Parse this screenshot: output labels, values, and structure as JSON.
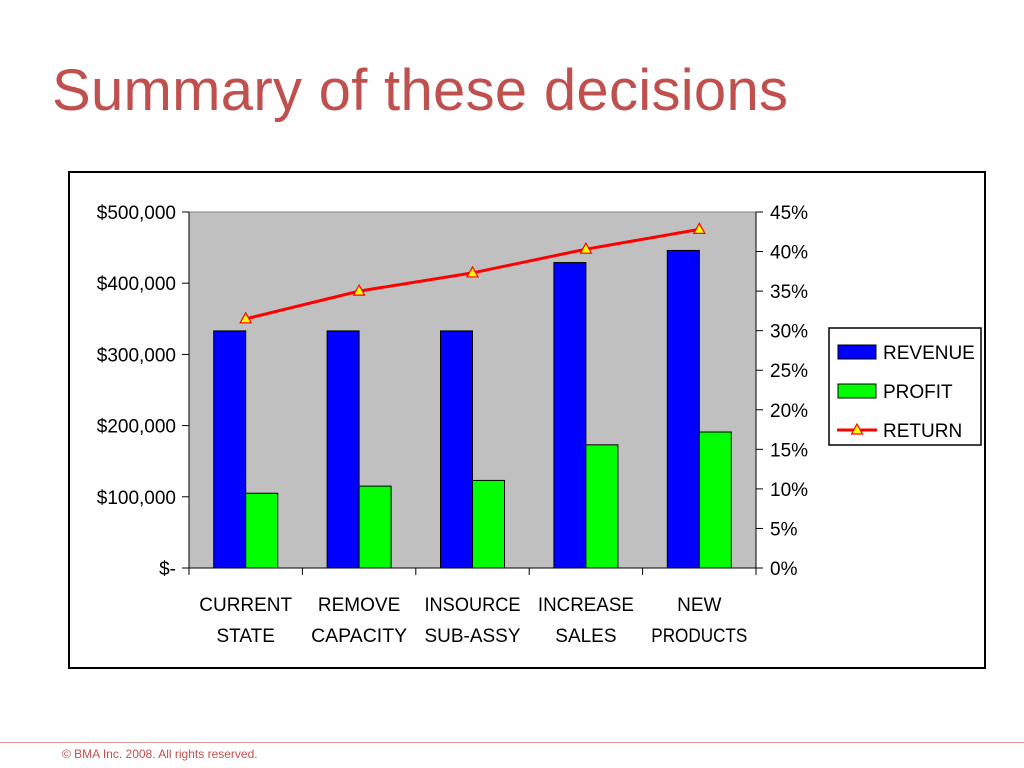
{
  "slide": {
    "title": "Summary of these decisions",
    "footer": "© BMA Inc.  2008.  All rights reserved.",
    "title_color": "#C0504D",
    "footer_color": "#C0504D",
    "rule_color": "#D99694"
  },
  "chart_data": {
    "type": "bar",
    "categories": [
      [
        "CURRENT",
        "STATE"
      ],
      [
        "REMOVE",
        "CAPACITY"
      ],
      [
        "INSOURCE",
        "SUB-ASSY"
      ],
      [
        "INCREASE",
        "SALES"
      ],
      [
        "NEW",
        "PRODUCTS"
      ]
    ],
    "series": [
      {
        "name": "REVENUE",
        "kind": "bar",
        "axis": "left",
        "color": "#0000FF",
        "values": [
          333000,
          333000,
          333000,
          429000,
          446000
        ]
      },
      {
        "name": "PROFIT",
        "kind": "bar",
        "axis": "left",
        "color": "#00FF00",
        "values": [
          105000,
          115000,
          123000,
          173000,
          191000
        ]
      },
      {
        "name": "RETURN",
        "kind": "line",
        "axis": "right",
        "color": "#FF0000",
        "marker": "triangle",
        "marker_color": "#FFFF00",
        "values": [
          0.315,
          0.35,
          0.373,
          0.403,
          0.428
        ]
      }
    ],
    "y_left": {
      "lim": [
        0,
        500000
      ],
      "ticks": [
        0,
        100000,
        200000,
        300000,
        400000,
        500000
      ],
      "tick_labels": [
        "$-",
        "$100,000",
        "$200,000",
        "$300,000",
        "$400,000",
        "$500,000"
      ]
    },
    "y_right": {
      "lim": [
        0,
        0.45
      ],
      "ticks": [
        0,
        0.05,
        0.1,
        0.15,
        0.2,
        0.25,
        0.3,
        0.35,
        0.4,
        0.45
      ],
      "tick_labels": [
        "0%",
        "5%",
        "10%",
        "15%",
        "20%",
        "25%",
        "30%",
        "35%",
        "40%",
        "45%"
      ]
    },
    "plot_background": "#C0C0C0",
    "grid": false,
    "legend_position": "right"
  }
}
